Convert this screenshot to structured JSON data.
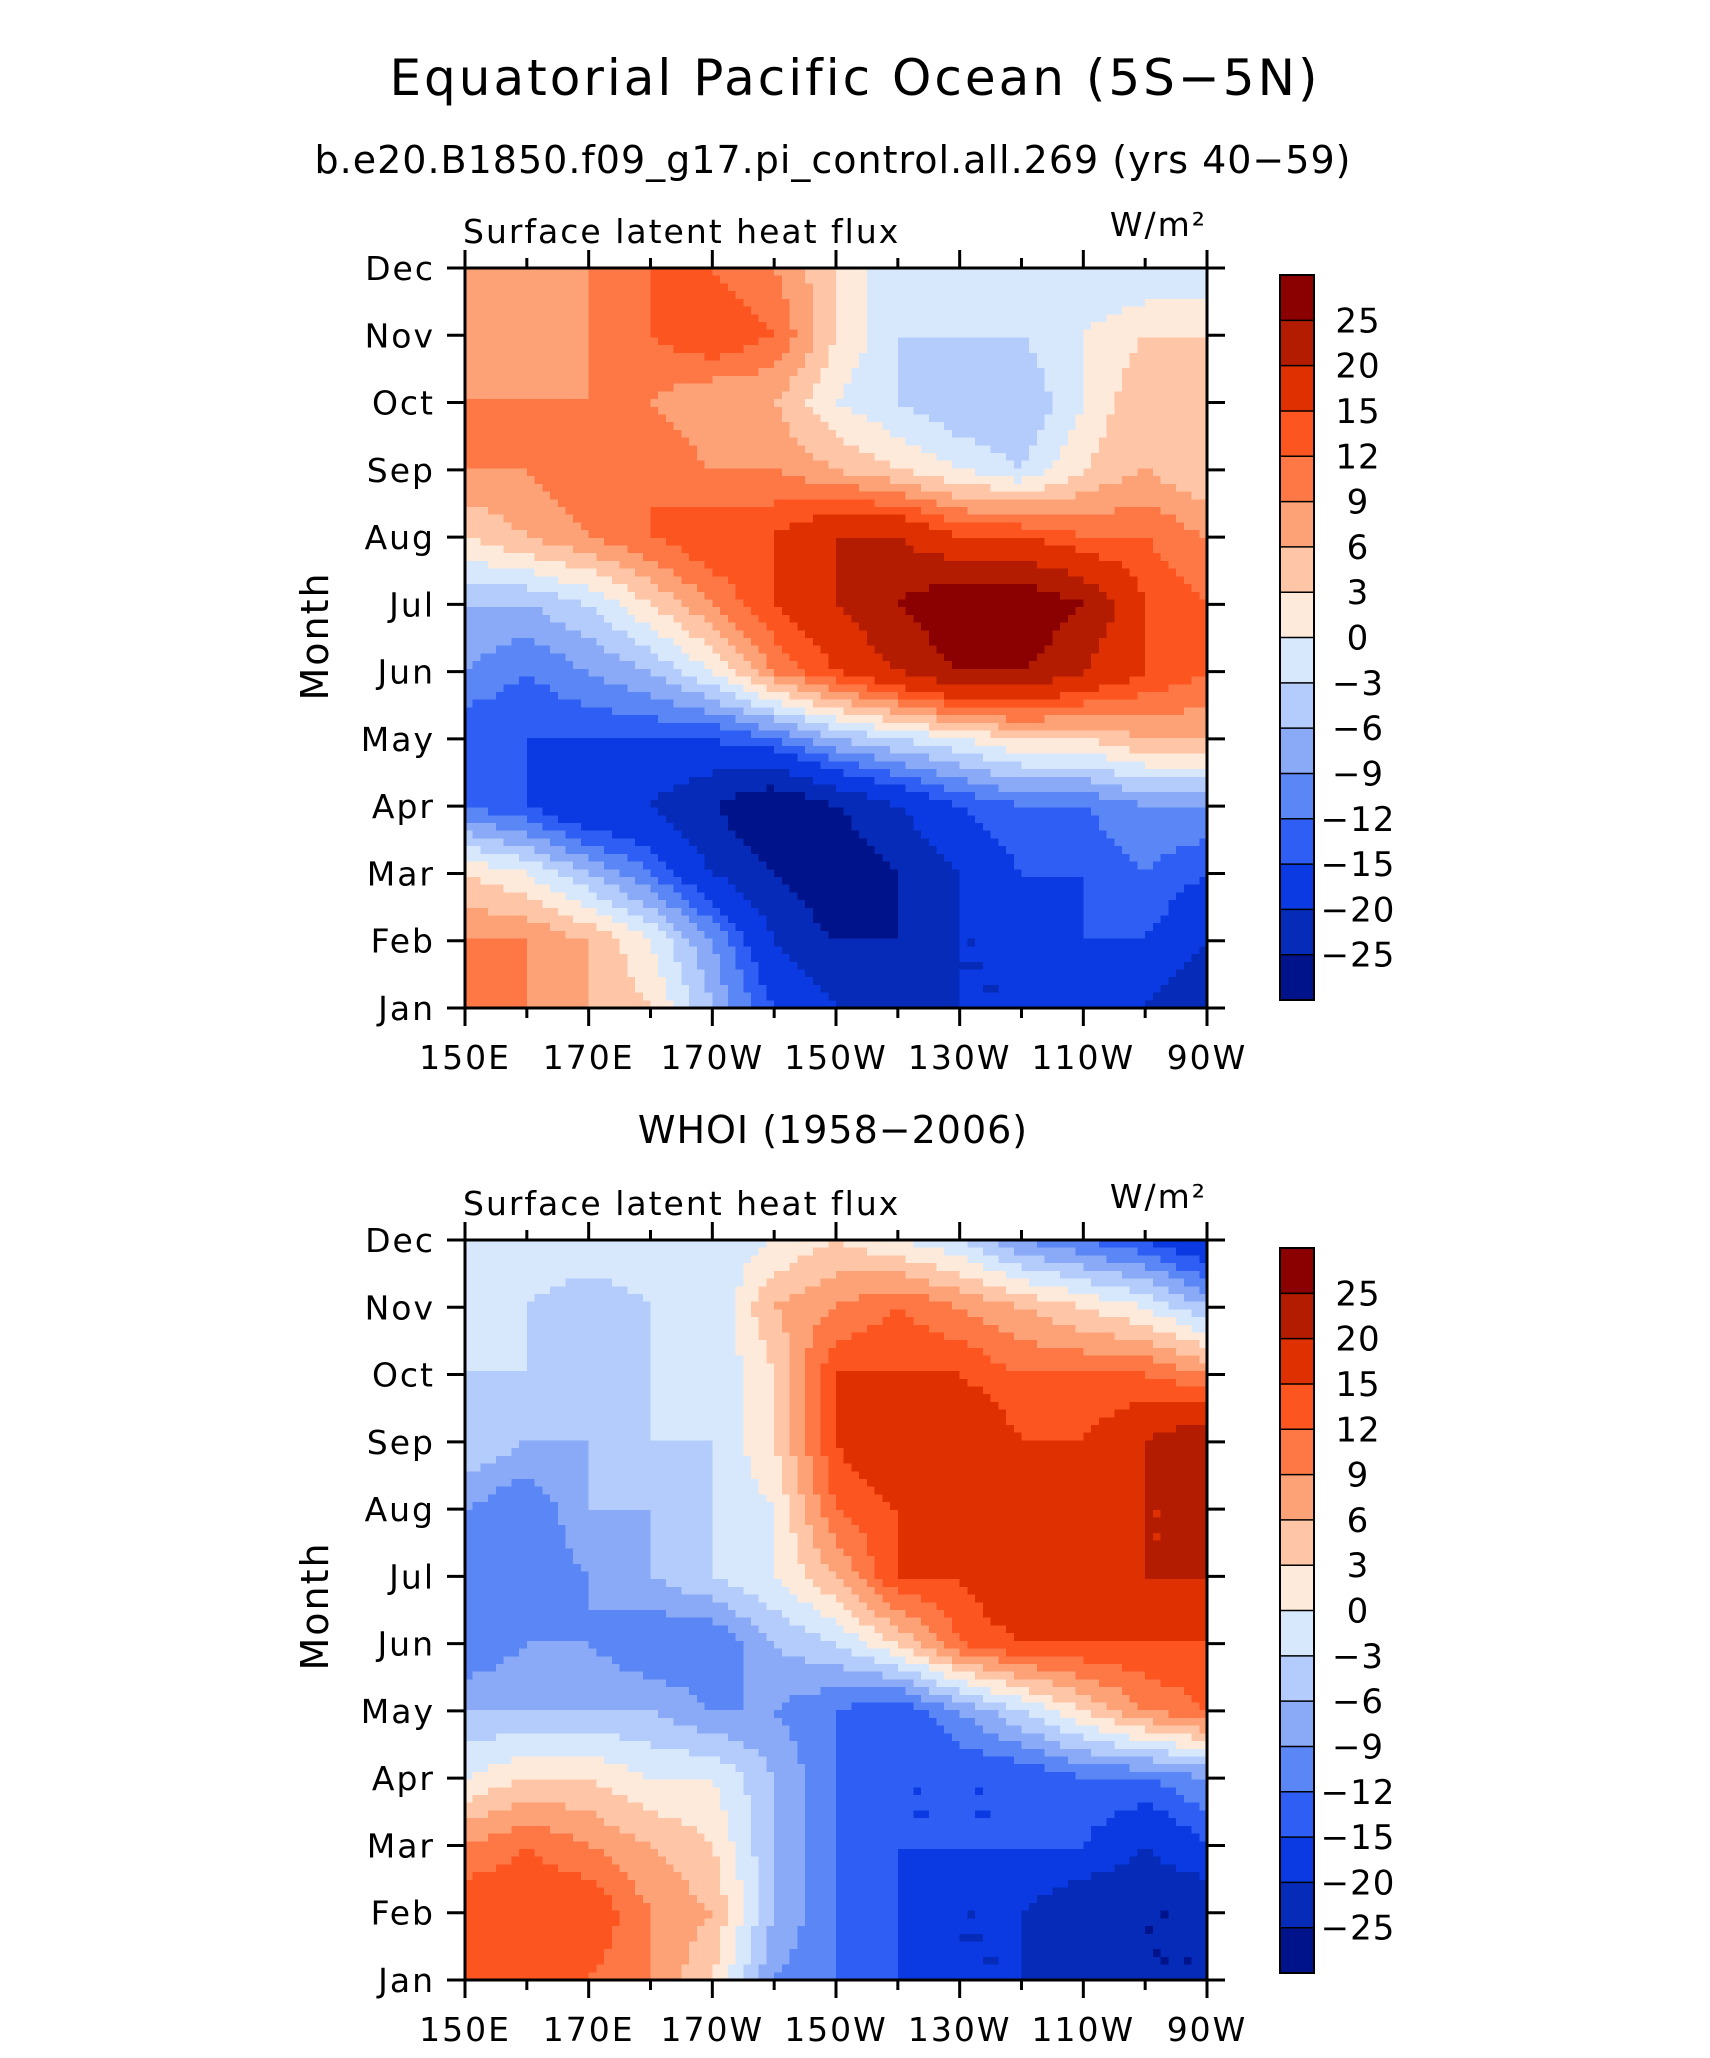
{
  "title": "Equatorial Pacific Ocean (5S−5N)",
  "colorbar": {
    "labels": [
      "25",
      "20",
      "15",
      "12",
      "9",
      "6",
      "3",
      "0",
      "−3",
      "−6",
      "−9",
      "−12",
      "−15",
      "−20",
      "−25"
    ],
    "colors": [
      "#8b0000",
      "#b31c00",
      "#de3000",
      "#fd5520",
      "#fd7845",
      "#fda277",
      "#fec6a6",
      "#feeadb",
      "#d7e8fd",
      "#b3ccfb",
      "#8aa9f7",
      "#5b86f5",
      "#2e5ef3",
      "#0b3ae2",
      "#052bb8",
      "#00138a"
    ]
  },
  "chart_data": [
    {
      "type": "heatmap",
      "subtitle": "b.e20.B1850.f09_g17.pi_control.all.269 (yrs 40−59)",
      "left_label": "Surface latent heat flux",
      "units": "W/m²",
      "ylabel": "Month",
      "x_ticks": [
        "150E",
        "170E",
        "170W",
        "150W",
        "130W",
        "110W",
        "90W"
      ],
      "y_ticks": [
        "Jan",
        "Feb",
        "Mar",
        "Apr",
        "May",
        "Jun",
        "Jul",
        "Aug",
        "Sep",
        "Oct",
        "Nov",
        "Dec"
      ],
      "x": [
        150,
        160,
        170,
        180,
        190,
        200,
        210,
        220,
        230,
        240,
        250,
        260,
        270
      ],
      "y": [
        "Jan",
        "Feb",
        "Mar",
        "Apr",
        "May",
        "Jun",
        "Jul",
        "Aug",
        "Sep",
        "Oct",
        "Nov",
        "Dec"
      ],
      "z": [
        [
          9,
          9,
          6,
          3,
          -6,
          -15,
          -20,
          -20,
          -20,
          -20,
          -20,
          -20,
          -25
        ],
        [
          9,
          9,
          6,
          0,
          -9,
          -20,
          -25,
          -25,
          -20,
          -20,
          -15,
          -15,
          -20
        ],
        [
          3,
          0,
          -6,
          -12,
          -20,
          -25,
          -30,
          -25,
          -20,
          -15,
          -15,
          -12,
          -15
        ],
        [
          -12,
          -15,
          -20,
          -20,
          -25,
          -30,
          -25,
          -20,
          -15,
          -12,
          -12,
          -9,
          -9
        ],
        [
          -15,
          -15,
          -15,
          -15,
          -15,
          -12,
          -6,
          -3,
          0,
          3,
          3,
          6,
          6
        ],
        [
          -9,
          -12,
          -9,
          -6,
          0,
          9,
          15,
          20,
          25,
          25,
          20,
          15,
          12
        ],
        [
          -6,
          -6,
          -3,
          3,
          9,
          15,
          20,
          25,
          30,
          30,
          25,
          15,
          12
        ],
        [
          3,
          6,
          9,
          12,
          15,
          15,
          20,
          20,
          15,
          15,
          12,
          12,
          9
        ],
        [
          9,
          9,
          12,
          12,
          9,
          9,
          6,
          3,
          0,
          -3,
          3,
          6,
          3
        ],
        [
          9,
          9,
          9,
          9,
          6,
          6,
          0,
          -3,
          -6,
          -6,
          0,
          6,
          6
        ],
        [
          6,
          6,
          9,
          12,
          15,
          12,
          3,
          -3,
          -3,
          -3,
          0,
          3,
          3
        ],
        [
          6,
          9,
          9,
          12,
          12,
          9,
          3,
          -3,
          -3,
          -3,
          -3,
          -3,
          -3
        ]
      ]
    },
    {
      "type": "heatmap",
      "subtitle": "WHOI (1958−2006)",
      "left_label": "Surface latent heat flux",
      "units": "W/m²",
      "ylabel": "Month",
      "x_ticks": [
        "150E",
        "170E",
        "170W",
        "150W",
        "130W",
        "110W",
        "90W"
      ],
      "y_ticks": [
        "Jan",
        "Feb",
        "Mar",
        "Apr",
        "May",
        "Jun",
        "Jul",
        "Aug",
        "Sep",
        "Oct",
        "Nov",
        "Dec"
      ],
      "x": [
        150,
        160,
        170,
        180,
        190,
        200,
        210,
        220,
        230,
        240,
        250,
        260,
        270
      ],
      "y": [
        "Jan",
        "Feb",
        "Mar",
        "Apr",
        "May",
        "Jun",
        "Jul",
        "Aug",
        "Sep",
        "Oct",
        "Nov",
        "Dec"
      ],
      "z": [
        [
          12,
          15,
          12,
          9,
          3,
          -9,
          -12,
          -15,
          -20,
          -20,
          -20,
          -25,
          -25
        ],
        [
          15,
          15,
          15,
          9,
          6,
          -6,
          -12,
          -15,
          -20,
          -20,
          -25,
          -25,
          -25
        ],
        [
          9,
          12,
          9,
          6,
          3,
          -6,
          -12,
          -15,
          -15,
          -15,
          -15,
          -20,
          -15
        ],
        [
          0,
          3,
          3,
          0,
          0,
          -6,
          -12,
          -15,
          -15,
          -15,
          -12,
          -12,
          -9
        ],
        [
          -6,
          -6,
          -6,
          -6,
          -9,
          -9,
          -12,
          -15,
          -9,
          -3,
          3,
          9,
          12
        ],
        [
          -12,
          -9,
          -9,
          -12,
          -12,
          -6,
          -3,
          3,
          12,
          15,
          15,
          15,
          15
        ],
        [
          -12,
          -12,
          -9,
          -6,
          -3,
          0,
          6,
          15,
          15,
          20,
          20,
          20,
          20
        ],
        [
          -9,
          -12,
          -6,
          -6,
          -3,
          0,
          12,
          15,
          20,
          15,
          15,
          20,
          20
        ],
        [
          -3,
          -6,
          -6,
          -3,
          -3,
          3,
          15,
          20,
          20,
          15,
          15,
          20,
          25
        ],
        [
          -3,
          -3,
          -3,
          -3,
          -3,
          3,
          15,
          15,
          15,
          12,
          12,
          12,
          9
        ],
        [
          -3,
          -3,
          -6,
          -3,
          -3,
          6,
          9,
          12,
          9,
          6,
          3,
          0,
          -6
        ],
        [
          -3,
          0,
          0,
          0,
          -3,
          0,
          3,
          0,
          -3,
          -9,
          -12,
          -15,
          -20
        ]
      ]
    }
  ]
}
